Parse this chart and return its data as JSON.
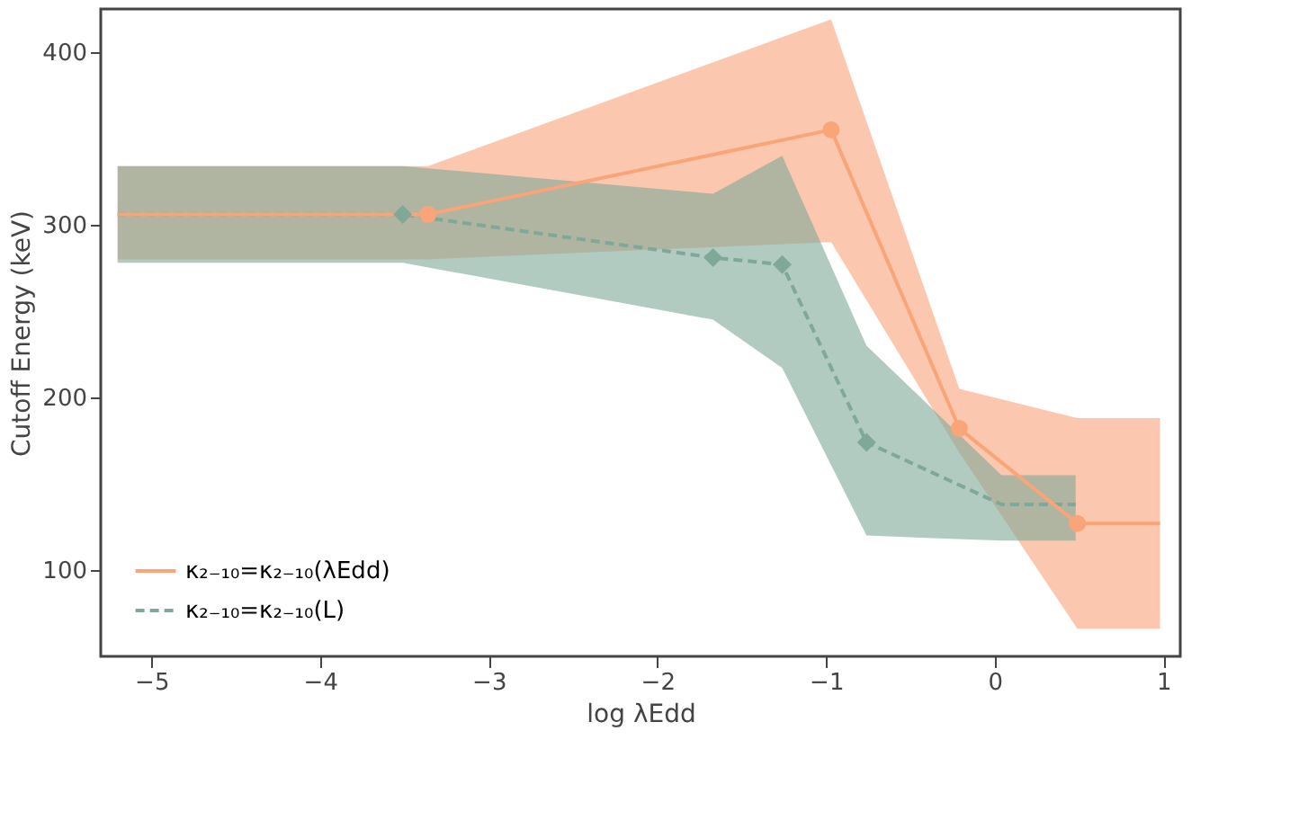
{
  "chart_data": {
    "type": "line",
    "xlabel": "log λEdd",
    "ylabel": "Cutoff Energy (keV)",
    "xlim": [
      -5.3,
      1.1
    ],
    "ylim": [
      50,
      425
    ],
    "xticks": [
      -5,
      -4,
      -3,
      -2,
      -1,
      0,
      1
    ],
    "yticks": [
      100,
      200,
      300,
      400
    ],
    "grid": false,
    "legend": "bottom left",
    "series": [
      {
        "name": "κ₂₋₁₀=κ₂₋₁₀(λEdd)",
        "color": "#f9a479",
        "line_style": "solid",
        "marker": "none",
        "x": [
          -5.2,
          -3.36,
          -0.97,
          -0.21,
          0.49,
          0.98
        ],
        "values": [
          306,
          306,
          355,
          182,
          127,
          127
        ],
        "lower": [
          280,
          280,
          290,
          168,
          66,
          66
        ],
        "upper": [
          334,
          334,
          419,
          205,
          188,
          188
        ]
      },
      {
        "name": "κ₂₋₁₀=κ₂₋₁₀(L)",
        "color": "#7fa898",
        "line_style": "dashed",
        "marker": "none",
        "x": [
          -5.2,
          -3.51,
          -1.67,
          -1.26,
          -0.76,
          0.04,
          0.48
        ],
        "values": [
          306,
          306,
          281,
          277,
          174,
          138,
          138
        ],
        "lower": [
          278,
          278,
          245,
          217,
          120,
          117,
          117
        ],
        "upper": [
          334,
          334,
          318,
          340,
          230,
          155,
          155
        ]
      },
      {
        "type": "scatter",
        "color": "#7fa898",
        "marker": "diamond",
        "x": [
          -3.51,
          -1.67,
          -1.26,
          -0.76
        ],
        "values": [
          306,
          281,
          277,
          174
        ]
      },
      {
        "type": "scatter",
        "color": "#f9a479",
        "marker": "circle",
        "x": [
          -3.36,
          -0.97,
          -0.21,
          0.49
        ],
        "values": [
          306,
          355,
          182,
          127
        ]
      }
    ]
  }
}
